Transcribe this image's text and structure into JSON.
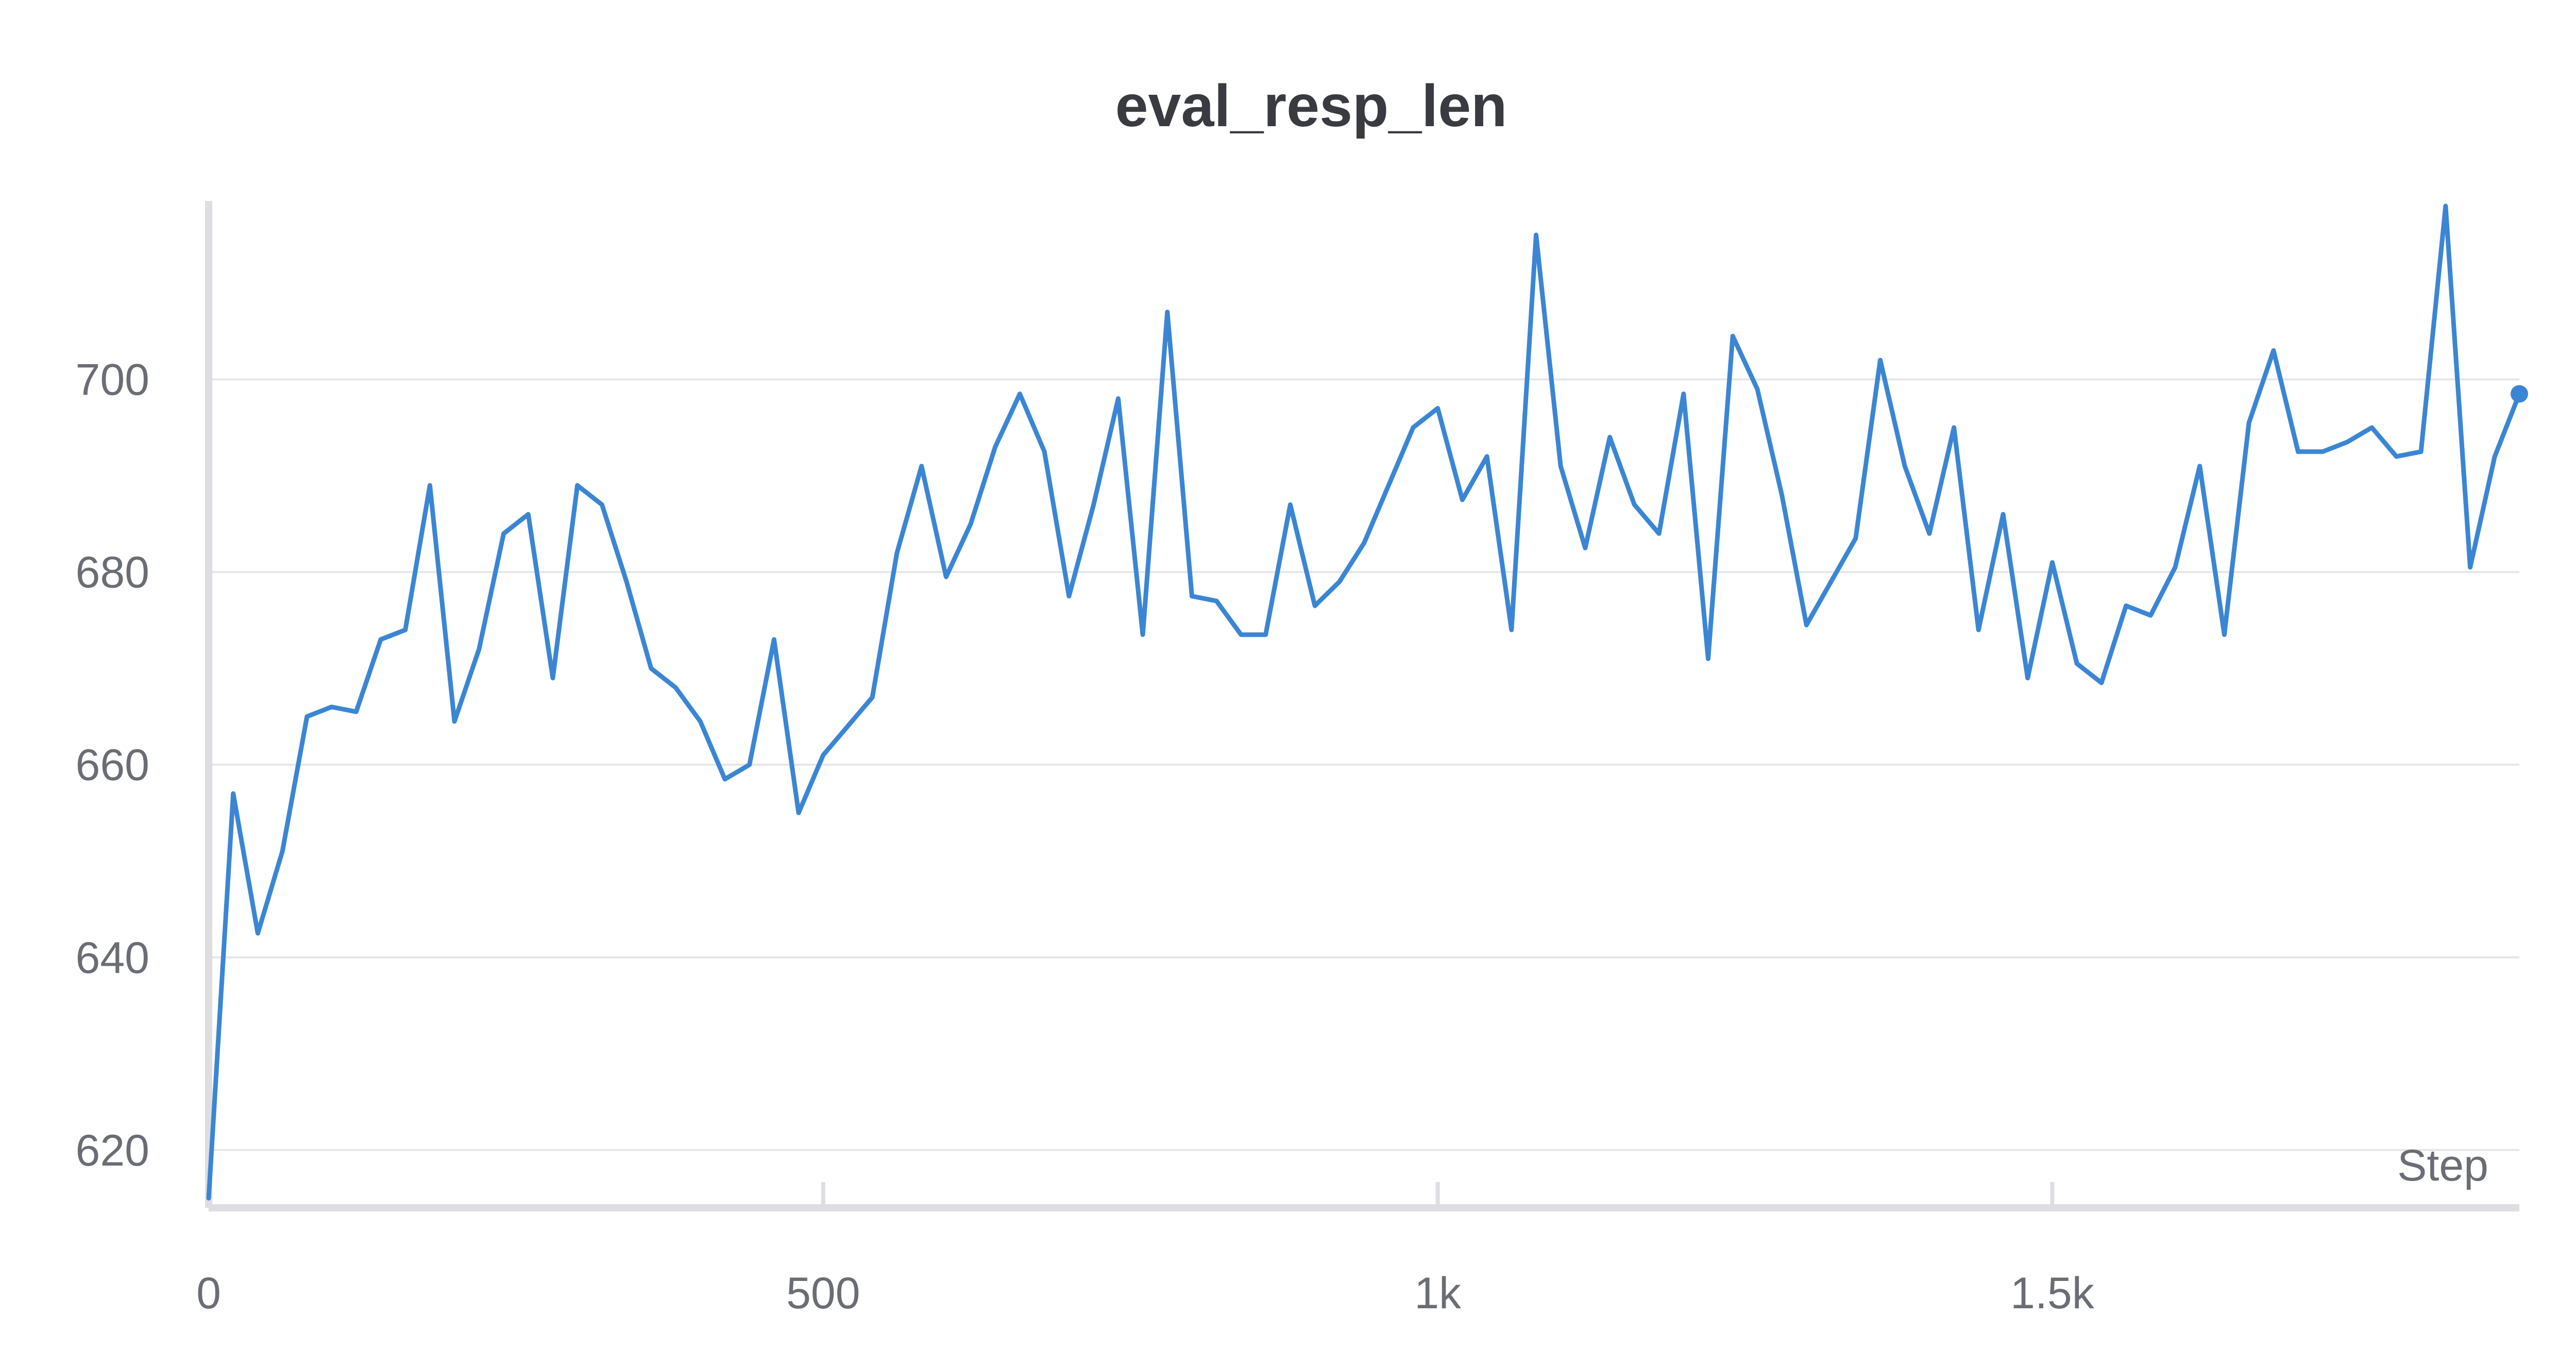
{
  "chart_data": {
    "type": "line",
    "title": "eval_resp_len",
    "xlabel": "Step",
    "ylabel": "",
    "xlim": [
      0,
      1880
    ],
    "ylim": [
      614,
      718
    ],
    "x_ticks": [
      {
        "value": 0,
        "label": "0"
      },
      {
        "value": 500,
        "label": "500"
      },
      {
        "value": 1000,
        "label": "1k"
      },
      {
        "value": 1500,
        "label": "1.5k"
      }
    ],
    "y_ticks": [
      {
        "value": 620,
        "label": "620"
      },
      {
        "value": 640,
        "label": "640"
      },
      {
        "value": 660,
        "label": "660"
      },
      {
        "value": 680,
        "label": "680"
      },
      {
        "value": 700,
        "label": "700"
      }
    ],
    "grid": true,
    "line_color": "#3b86d4",
    "series": [
      {
        "name": "",
        "x": [
          0,
          20,
          40,
          60,
          80,
          100,
          120,
          140,
          160,
          180,
          200,
          220,
          240,
          260,
          280,
          300,
          320,
          340,
          360,
          380,
          400,
          420,
          440,
          460,
          480,
          500,
          520,
          540,
          560,
          580,
          600,
          620,
          640,
          660,
          680,
          700,
          720,
          740,
          760,
          780,
          800,
          820,
          840,
          860,
          880,
          900,
          920,
          940,
          960,
          980,
          1000,
          1020,
          1040,
          1060,
          1080,
          1100,
          1120,
          1140,
          1160,
          1180,
          1200,
          1220,
          1240,
          1260,
          1280,
          1300,
          1320,
          1340,
          1360,
          1380,
          1400,
          1420,
          1440,
          1460,
          1480,
          1500,
          1520,
          1540,
          1560,
          1580,
          1600,
          1620,
          1640,
          1660,
          1680,
          1700,
          1720,
          1740,
          1760,
          1780,
          1800,
          1820,
          1840,
          1860,
          1880
        ],
        "values": [
          615,
          657,
          642.5,
          651,
          665,
          666,
          665.5,
          673,
          674,
          689,
          664.5,
          672,
          684,
          686,
          669,
          689,
          687,
          679,
          670,
          668,
          664.5,
          658.5,
          660,
          673,
          655,
          661,
          664,
          667,
          682,
          691,
          679.5,
          685,
          693,
          698.5,
          692.5,
          677.5,
          687,
          698,
          673.5,
          707,
          677.5,
          677,
          673.5,
          673.5,
          687,
          676.5,
          679,
          683,
          689,
          695,
          697,
          687.5,
          692,
          674,
          715,
          691,
          682.5,
          694,
          687,
          684,
          698.5,
          671,
          704.5,
          699,
          688,
          674.5,
          679,
          683.5,
          702,
          691,
          684,
          695,
          674,
          686,
          669,
          681,
          670.5,
          668.5,
          676.5,
          675.5,
          680.5,
          691,
          673.5,
          695.5,
          703,
          692.5,
          692.5,
          693.5,
          695,
          692,
          692.5,
          718,
          680.5,
          692,
          698.5
        ]
      }
    ]
  }
}
